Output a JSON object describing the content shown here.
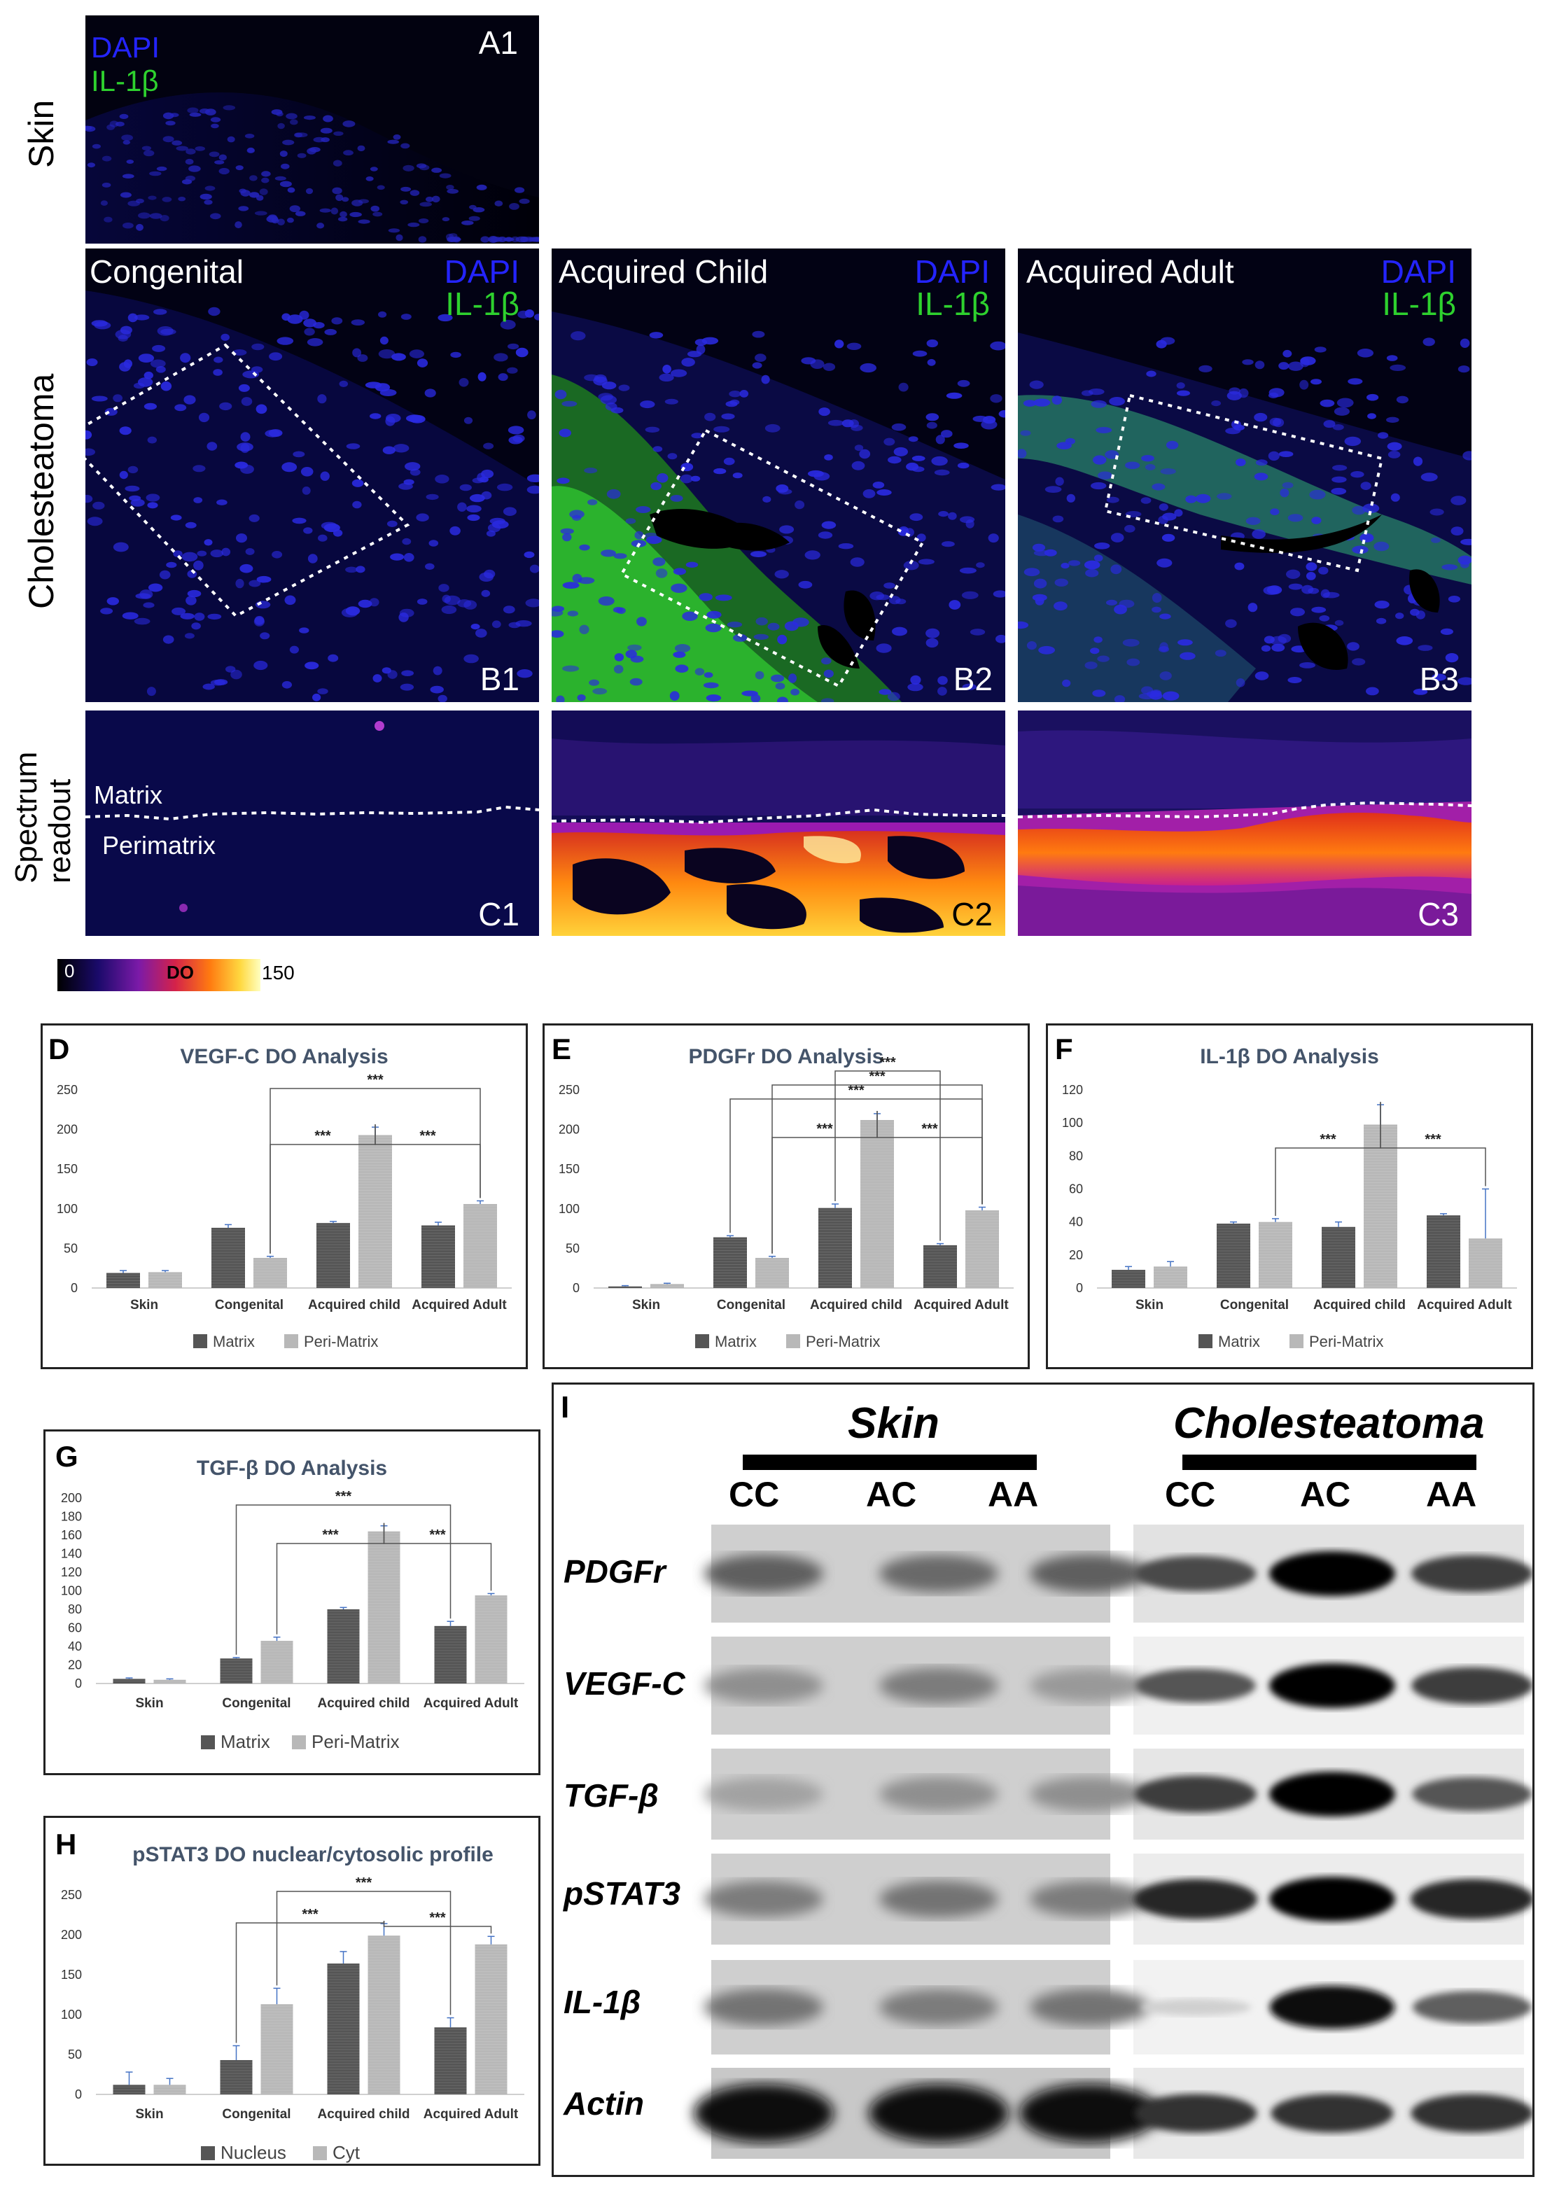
{
  "micrographs": {
    "row_labels": [
      "Skin",
      "Cholesteatoma",
      "Spectrum\nreadout"
    ],
    "stain_labels": {
      "dapi": "DAPI",
      "il1b": "IL-1β"
    },
    "a1": {
      "corner": "A1"
    },
    "b1": {
      "title": "Congenital",
      "corner": "B1"
    },
    "b2": {
      "title": "Acquired Child",
      "corner": "B2"
    },
    "b3": {
      "title": "Acquired Adult",
      "corner": "B3"
    },
    "c1": {
      "corner": "C1",
      "matrix": "Matrix",
      "perimatrix": "Perimatrix"
    },
    "c2": {
      "corner": "C2"
    },
    "c3": {
      "corner": "C3"
    },
    "colorbar": {
      "min": "0",
      "label": "DO",
      "max": "150"
    }
  },
  "colors": {
    "dark_bar": "#555555",
    "light_bar": "#b8b8b8",
    "title": "#44546a",
    "error": "#4472c4"
  },
  "chart_data": [
    {
      "panel": "D",
      "type": "bar",
      "title": "VEGF-C DO Analysis",
      "categories": [
        "Skin",
        "Congenital",
        "Acquired child",
        "Acquired Adult"
      ],
      "series": [
        {
          "name": "Matrix",
          "values": [
            19,
            76,
            82,
            79
          ]
        },
        {
          "name": "Peri-Matrix",
          "values": [
            20,
            38,
            193,
            106
          ]
        }
      ],
      "errors": [
        [
          3,
          4,
          2,
          4
        ],
        [
          2,
          2,
          10,
          4
        ]
      ],
      "yticks": [
        "0",
        "50",
        "100",
        "150",
        "200",
        "250"
      ],
      "ylim": [
        0,
        250
      ],
      "significance": [
        "***",
        "***",
        "***"
      ]
    },
    {
      "panel": "E",
      "type": "bar",
      "title": "PDGFr DO Analysis",
      "categories": [
        "Skin",
        "Congenital",
        "Acquired child",
        "Acquired Adult"
      ],
      "series": [
        {
          "name": "Matrix",
          "values": [
            2,
            64,
            101,
            54
          ]
        },
        {
          "name": "Peri-Matrix",
          "values": [
            5,
            38,
            212,
            98
          ]
        }
      ],
      "errors": [
        [
          1,
          2,
          5,
          2
        ],
        [
          1,
          2,
          8,
          4
        ]
      ],
      "yticks": [
        "0",
        "50",
        "100",
        "150",
        "200",
        "250"
      ],
      "ylim": [
        0,
        250
      ],
      "significance": [
        "***",
        "***",
        "***",
        "***",
        "***"
      ]
    },
    {
      "panel": "F",
      "type": "bar",
      "title": "IL-1β DO Analysis",
      "categories": [
        "Skin",
        "Congenital",
        "Acquired child",
        "Acquired Adult"
      ],
      "series": [
        {
          "name": "Matrix",
          "values": [
            11,
            39,
            37,
            44
          ]
        },
        {
          "name": "Peri-Matrix",
          "values": [
            13,
            40,
            99,
            30
          ]
        }
      ],
      "errors": [
        [
          2,
          1,
          3,
          1
        ],
        [
          3,
          2,
          12,
          30
        ]
      ],
      "yticks": [
        "0",
        "20",
        "40",
        "60",
        "80",
        "100",
        "120"
      ],
      "ylim": [
        0,
        120
      ],
      "significance": [
        "***",
        "***"
      ]
    },
    {
      "panel": "G",
      "type": "bar",
      "title": "TGF-β DO Analysis",
      "categories": [
        "Skin",
        "Congenital",
        "Acquired child",
        "Acquired Adult"
      ],
      "series": [
        {
          "name": "Matrix",
          "values": [
            5,
            27,
            80,
            62
          ]
        },
        {
          "name": "Peri-Matrix",
          "values": [
            4,
            46,
            164,
            95
          ]
        }
      ],
      "errors": [
        [
          1,
          1,
          2,
          5
        ],
        [
          1,
          4,
          6,
          2
        ]
      ],
      "yticks": [
        "0",
        "20",
        "40",
        "60",
        "80",
        "100",
        "120",
        "140",
        "160",
        "180",
        "200"
      ],
      "ylim": [
        0,
        200
      ],
      "significance": [
        "***",
        "***",
        "***"
      ]
    },
    {
      "panel": "H",
      "type": "bar",
      "title": "pSTAT3 DO nuclear/cytosolic profile",
      "categories": [
        "Skin",
        "Congenital",
        "Acquired child",
        "Acquired Adult"
      ],
      "series": [
        {
          "name": "Nucleus",
          "values": [
            12,
            43,
            164,
            84
          ]
        },
        {
          "name": "Cyt",
          "values": [
            12,
            113,
            199,
            188
          ]
        }
      ],
      "errors": [
        [
          16,
          18,
          15,
          12
        ],
        [
          8,
          20,
          15,
          10
        ]
      ],
      "yticks": [
        "0",
        "50",
        "100",
        "150",
        "200",
        "250"
      ],
      "ylim": [
        0,
        250
      ],
      "significance": [
        "***",
        "***",
        "***"
      ]
    }
  ],
  "western_blot": {
    "panel": "I",
    "groups": [
      "Skin",
      "Cholesteatoma"
    ],
    "lanes": [
      "CC",
      "AC",
      "AA"
    ],
    "proteins": [
      "PDGFr",
      "VEGF-C",
      "TGF-β",
      "pSTAT3",
      "IL-1β",
      "Actin"
    ]
  }
}
